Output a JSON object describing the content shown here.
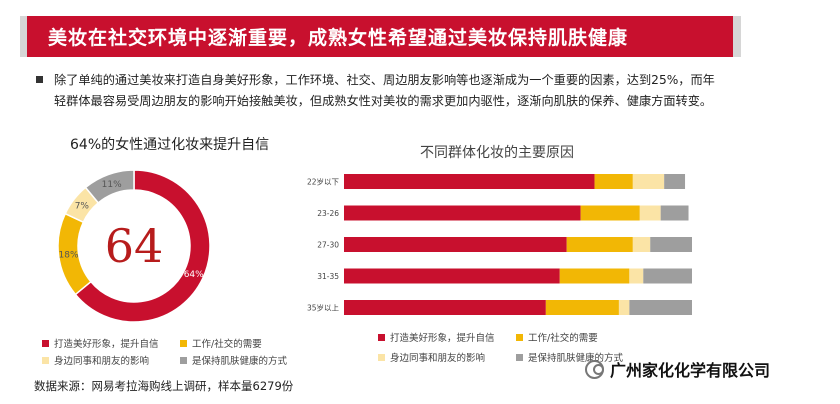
{
  "header": {
    "title": "美妆在社交环境中逐渐重要，成熟女性希望通过美妆保持肌肤健康"
  },
  "intro": {
    "line1": "除了单纯的通过美妆来打造自身美好形象，工作环境、社交、周边朋友影响等也逐渐成为一个重要的因素，达到25%，而年",
    "line2": "轻群体最容易受周边朋友的影响开始接触美妆，但成熟女性对美妆的需求更加内驱性，逐渐向肌肤的保养、健康方面转变。"
  },
  "source": "数据来源：网易考拉海购线上调研，样本量6279份",
  "company": "广州家化化学有限公司",
  "chart_data": [
    {
      "type": "pie",
      "title": "64%的女性通过化妆来提升自信",
      "center_label": "64",
      "categories": [
        "打造美好形象，提升自信",
        "工作/社交的需要",
        "身边同事和朋友的影响",
        "是保持肌肤健康的方式"
      ],
      "values": [
        64,
        18,
        7,
        11
      ],
      "value_labels": [
        "64%",
        "18%",
        "7%",
        "11%"
      ],
      "colors": [
        "#c8102e",
        "#f2b705",
        "#fbe4a6",
        "#9e9e9e"
      ],
      "legend": "bottom"
    },
    {
      "type": "bar",
      "orientation": "horizontal",
      "stacked": true,
      "title": "不同群体化妆的主要原因",
      "categories": [
        "22岁以下",
        "23-26",
        "27-30",
        "31-35",
        "35岁以上"
      ],
      "series": [
        {
          "name": "打造美好形象，提升自信",
          "values": [
            72,
            68,
            64,
            62,
            58
          ],
          "color": "#c8102e"
        },
        {
          "name": "工作/社交的需要",
          "values": [
            11,
            17,
            19,
            20,
            21
          ],
          "color": "#f2b705"
        },
        {
          "name": "身边同事和朋友的影响",
          "values": [
            9,
            6,
            5,
            4,
            3
          ],
          "color": "#fbe4a6"
        },
        {
          "name": "是保持肌肤健康的方式",
          "values": [
            6,
            8,
            12,
            14,
            18
          ],
          "color": "#9e9e9e"
        }
      ],
      "xlim": [
        0,
        100
      ],
      "legend": "bottom"
    }
  ]
}
